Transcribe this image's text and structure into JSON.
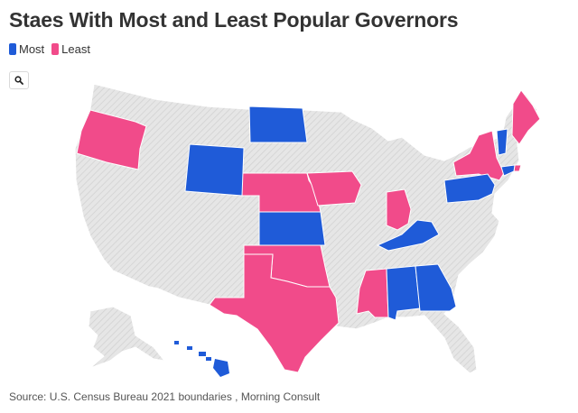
{
  "title": "Staes With Most and Least Popular Governors",
  "legend": {
    "most": "Most",
    "least": "Least"
  },
  "colors": {
    "most": "#1f5bd8",
    "least": "#f14b8a",
    "neutral": "#e3e3e3",
    "hatch": "#cfcfcf",
    "border": "#ffffff"
  },
  "zoom_icon": "search-icon",
  "source": "Source: U.S. Census Bureau 2021 boundaries , Morning Consult",
  "map": {
    "most": [
      "North Dakota",
      "Wyoming",
      "Kansas",
      "Kentucky",
      "Alabama",
      "Georgia",
      "Pennsylvania",
      "Vermont",
      "Connecticut",
      "Hawaii"
    ],
    "least": [
      "Oregon",
      "Nebraska",
      "Iowa",
      "Indiana",
      "New York",
      "Maine",
      "Rhode Island",
      "Oklahoma",
      "Texas",
      "Mississippi"
    ]
  }
}
